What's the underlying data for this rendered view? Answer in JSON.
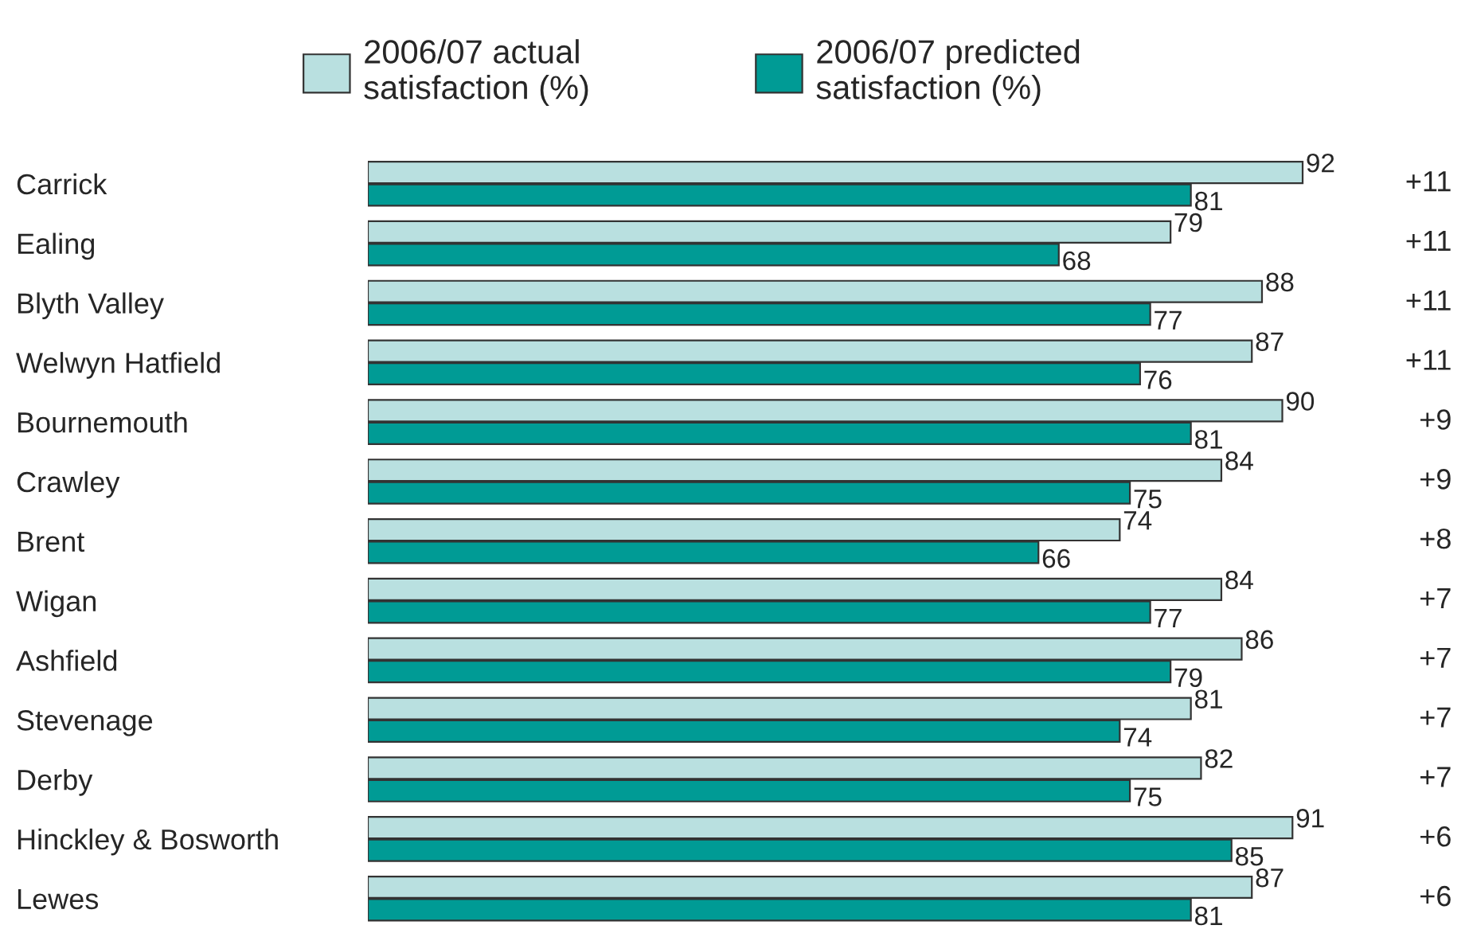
{
  "chart_data": {
    "type": "bar",
    "orientation": "horizontal",
    "data_labels": true,
    "legend": "top",
    "grid": false,
    "categories": [
      "Carrick",
      "Ealing",
      "Blyth Valley",
      "Welwyn Hatfield",
      "Bournemouth",
      "Crawley",
      "Brent",
      "Wigan",
      "Ashfield",
      "Stevenage",
      "Derby",
      "Hinckley & Bosworth",
      "Lewes"
    ],
    "series": [
      {
        "name": "2006/07 actual\nsatisfaction (%)",
        "color": "#b9e0e0",
        "values": [
          92,
          79,
          88,
          87,
          90,
          84,
          74,
          84,
          86,
          81,
          82,
          91,
          87
        ]
      },
      {
        "name": "2006/07 predicted\nsatisfaction (%)",
        "color": "#009b95",
        "values": [
          81,
          68,
          77,
          76,
          81,
          75,
          66,
          77,
          79,
          74,
          75,
          85,
          81
        ]
      }
    ],
    "annotations": [
      "+11",
      "+11",
      "+11",
      "+11",
      "+9",
      "+9",
      "+8",
      "+7",
      "+7",
      "+7",
      "+7",
      "+6",
      "+6"
    ]
  }
}
